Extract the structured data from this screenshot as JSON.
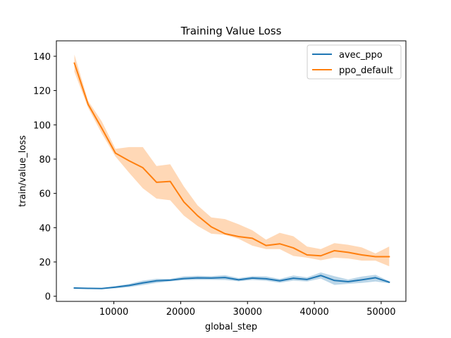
{
  "chart_data": {
    "type": "line",
    "title": "Training Value Loss",
    "xlabel": "global_step",
    "ylabel": "train/value_loss",
    "xlim": [
      1400,
      53700
    ],
    "ylim": [
      -3,
      149
    ],
    "x_ticks": [
      10000,
      20000,
      30000,
      40000,
      50000
    ],
    "x_tick_labels": [
      "10000",
      "20000",
      "30000",
      "40000",
      "50000"
    ],
    "y_ticks": [
      0,
      20,
      40,
      60,
      80,
      100,
      120,
      140
    ],
    "y_tick_labels": [
      "0",
      "20",
      "40",
      "60",
      "80",
      "100",
      "120",
      "140"
    ],
    "grid": false,
    "legend": {
      "position": "top-right"
    },
    "series": [
      {
        "name": "avec_ppo",
        "color": "#1f77b4",
        "x": [
          4096,
          6144,
          8192,
          10240,
          12288,
          14336,
          16384,
          18432,
          20480,
          22528,
          24576,
          26624,
          28672,
          30720,
          32768,
          34816,
          36864,
          38912,
          40960,
          43008,
          45056,
          47104,
          49152,
          51200
        ],
        "y": [
          4.8,
          4.6,
          4.5,
          5.3,
          6.3,
          7.8,
          9.0,
          9.4,
          10.3,
          10.7,
          10.6,
          10.9,
          9.6,
          10.6,
          10.2,
          9.0,
          10.5,
          9.8,
          12.1,
          9.2,
          8.5,
          9.6,
          10.8,
          8.2
        ],
        "lower": [
          4.6,
          4.4,
          4.3,
          4.6,
          5.3,
          6.5,
          7.8,
          8.7,
          9.4,
          9.6,
          9.6,
          9.5,
          8.7,
          9.5,
          9.0,
          7.9,
          9.1,
          8.6,
          10.3,
          6.6,
          7.2,
          7.8,
          8.6,
          7.6
        ],
        "upper": [
          5.0,
          4.8,
          4.7,
          5.9,
          7.2,
          9.1,
          10.2,
          10.1,
          11.6,
          11.9,
          11.7,
          12.3,
          10.6,
          11.7,
          11.6,
          10.1,
          12.1,
          11.0,
          13.9,
          11.7,
          9.8,
          11.5,
          12.5,
          8.8
        ]
      },
      {
        "name": "ppo_default",
        "color": "#ff7f0e",
        "x": [
          4096,
          6144,
          8192,
          10240,
          12288,
          14336,
          16384,
          18432,
          20480,
          22528,
          24576,
          26624,
          28672,
          30720,
          32768,
          34816,
          36864,
          38912,
          40960,
          43008,
          45056,
          47104,
          49152,
          51200
        ],
        "y": [
          136,
          112,
          98,
          83.5,
          79,
          75,
          66.5,
          67,
          55,
          47,
          40.5,
          36.5,
          34.8,
          33.8,
          29.6,
          30.6,
          28.2,
          24.1,
          23.6,
          26.6,
          25.6,
          24.1,
          23.1,
          23.1
        ],
        "lower": [
          131,
          110,
          95,
          81.5,
          72,
          63,
          57,
          56,
          47,
          41,
          36.5,
          35.8,
          33.5,
          29.5,
          27.5,
          27.5,
          23.5,
          22.5,
          21,
          22.5,
          22,
          20.8,
          20.8,
          17.5
        ],
        "upper": [
          141,
          114,
          102,
          86,
          87,
          87,
          76,
          77,
          64,
          53,
          46,
          45,
          42,
          38.5,
          33,
          37,
          35,
          29,
          27.5,
          31,
          30,
          28.5,
          25,
          29
        ]
      }
    ]
  }
}
